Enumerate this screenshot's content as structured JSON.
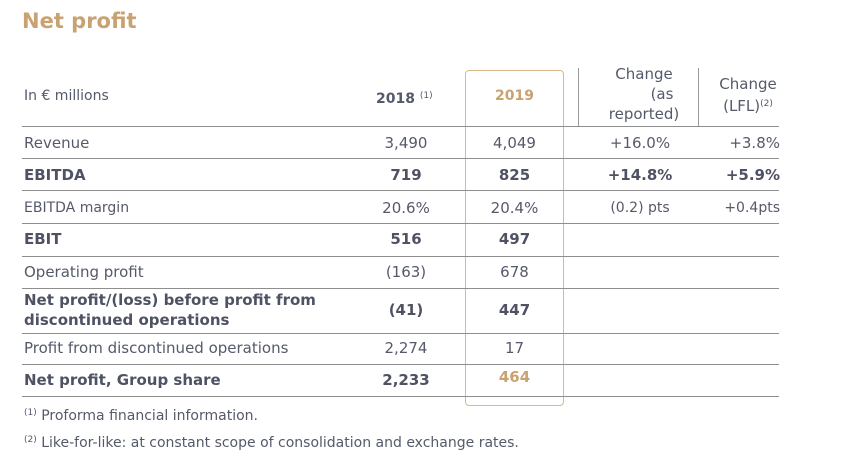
{
  "title": "Net profit",
  "header": {
    "label": "In € millions",
    "col_2018": "2018",
    "col_2018_note": "(1)",
    "col_2019": "2019",
    "change_reported": [
      "Change",
      "(as",
      "reported)"
    ],
    "change_lfl": [
      "Change",
      "(LFL)"
    ],
    "change_lfl_note": "(2)"
  },
  "rows": [
    {
      "label": "Revenue",
      "v2018": "3,490",
      "v2019": "4,049",
      "reported": "+16.0%",
      "lfl": "+3.8%"
    },
    {
      "label": "EBITDA",
      "v2018": "719",
      "v2019": "825",
      "reported": "+14.8%",
      "lfl": "+5.9%"
    },
    {
      "label": "EBITDA margin",
      "v2018": "20.6%",
      "v2019": "20.4%",
      "reported": "(0.2) pts",
      "lfl": "+0.4pts"
    },
    {
      "label": "EBIT",
      "v2018": "516",
      "v2019": "497",
      "reported": "",
      "lfl": ""
    },
    {
      "label": "Operating profit",
      "v2018": "(163)",
      "v2019": "678",
      "reported": "",
      "lfl": ""
    },
    {
      "label_line1": "Net profit/(loss) before profit from",
      "label_line2": "discontinued operations",
      "v2018": "(41)",
      "v2019": "447",
      "reported": "",
      "lfl": ""
    },
    {
      "label": "Profit from discontinued operations",
      "v2018": "2,274",
      "v2019": "17",
      "reported": "",
      "lfl": ""
    },
    {
      "label": "Net profit, Group share",
      "v2018": "2,233",
      "v2019": "464",
      "reported": "",
      "lfl": ""
    }
  ],
  "footnotes": [
    {
      "mark": "(1)",
      "text": "Proforma financial information."
    },
    {
      "mark": "(2)",
      "text": "Like-for-like: at constant scope of consolidation and exchange rates."
    }
  ]
}
